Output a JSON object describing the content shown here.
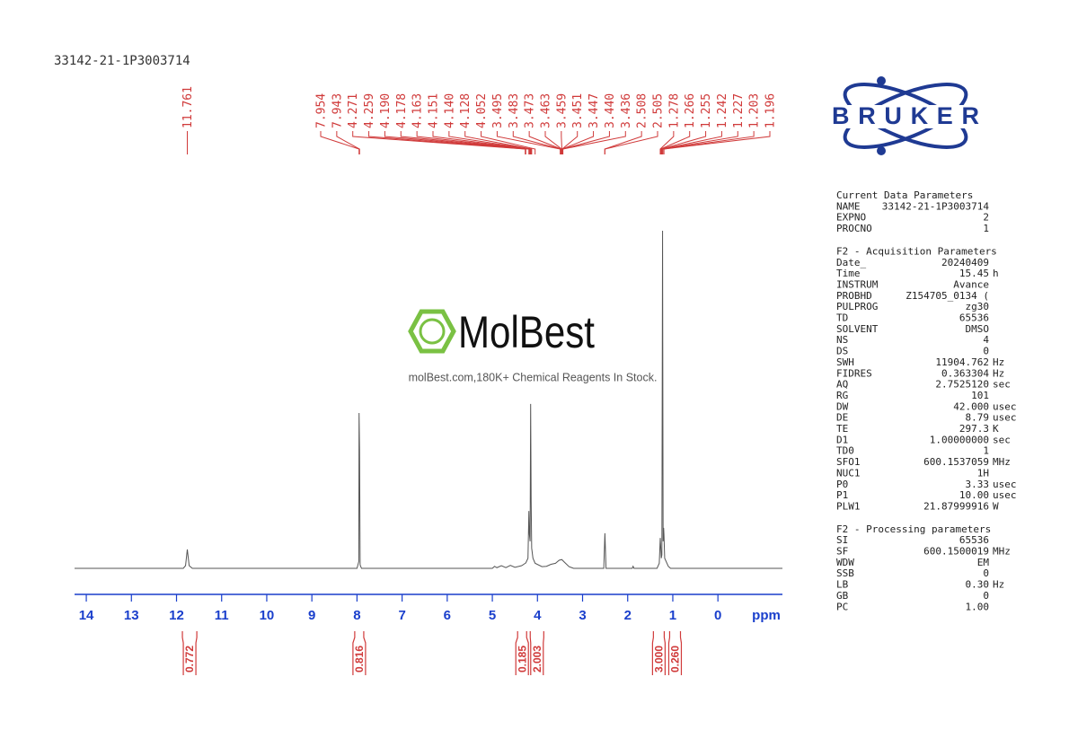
{
  "chart_data": {
    "type": "line",
    "sample_id": "33142-21-1P3003714",
    "x_label": "ppm",
    "xlim": [
      14.26,
      -1.43
    ],
    "xticks": [
      14,
      13,
      12,
      11,
      10,
      9,
      8,
      7,
      6,
      5,
      4,
      3,
      2,
      1,
      0
    ],
    "ylim": [
      0,
      100
    ],
    "axis_color": "#1a3fcc",
    "label_color": "#d03a3a",
    "spectrum": {
      "color": "#555555",
      "x": [
        14.26,
        11.85,
        11.8,
        11.761,
        11.72,
        11.65,
        8.0,
        7.96,
        7.954,
        7.943,
        7.93,
        7.9,
        5.0,
        4.95,
        4.9,
        4.8,
        4.7,
        4.6,
        4.5,
        4.35,
        4.271,
        4.259,
        4.21,
        4.19,
        4.178,
        4.163,
        4.151,
        4.14,
        4.128,
        4.1,
        4.052,
        3.9,
        3.8,
        3.7,
        3.6,
        3.52,
        3.46,
        3.4,
        3.3,
        3.2,
        2.53,
        2.505,
        2.48,
        1.9,
        1.88,
        1.86,
        1.35,
        1.3,
        1.278,
        1.266,
        1.255,
        1.242,
        1.227,
        1.215,
        1.203,
        1.196,
        1.18,
        1.1,
        1.05,
        -1.43
      ],
      "y": [
        0,
        0,
        0.8,
        5.6,
        0.8,
        0,
        0,
        2,
        46,
        35,
        1,
        0,
        0,
        0.6,
        0.2,
        0.8,
        0.2,
        0.9,
        0.3,
        0.8,
        1.5,
        1.6,
        3,
        17,
        10,
        8,
        48.7,
        20,
        6,
        3,
        1.5,
        0.5,
        0.6,
        1.2,
        1.5,
        2.4,
        2.6,
        1.8,
        0.5,
        0,
        0,
        10.4,
        0,
        0,
        0.6,
        0,
        0,
        1.5,
        9,
        6,
        3,
        4,
        100,
        8,
        12,
        10,
        3,
        0.6,
        0,
        0
      ]
    },
    "peak_labels": [
      11.761,
      7.954,
      7.943,
      4.271,
      4.259,
      {
        "value": 4.19,
        "label": "4.190"
      },
      4.178,
      4.163,
      4.151,
      {
        "value": 4.14,
        "label": "4.140"
      },
      4.128,
      4.052,
      3.495,
      3.483,
      3.473,
      3.463,
      3.459,
      3.451,
      3.447,
      {
        "value": 3.44,
        "label": "3.440"
      },
      3.436,
      2.508,
      2.505,
      1.278,
      1.266,
      1.255,
      1.242,
      1.227,
      1.203,
      1.196
    ],
    "integrals": [
      {
        "from": 11.87,
        "to": 11.55,
        "value": 0.772
      },
      {
        "from": 8.05,
        "to": 7.85,
        "value": 0.816
      },
      {
        "from": 4.44,
        "to": 4.24,
        "value": 0.185
      },
      {
        "from": 4.16,
        "to": 3.86,
        "value": 2.003
      },
      {
        "from": 1.43,
        "to": 1.19,
        "value": {
          "value": 3,
          "label": "3.000"
        }
      },
      {
        "from": 1.07,
        "to": 0.83,
        "value": {
          "value": 0.26,
          "label": "0.260"
        }
      }
    ]
  },
  "logo": "BRUKER",
  "watermark": {
    "name": "MolBest",
    "tagline": "molBest.com,180K+ Chemical Reagents In Stock."
  },
  "parameters": [
    {
      "title": "Current Data Parameters",
      "rows": [
        [
          "NAME",
          "33142-21-1P3003714"
        ],
        [
          "EXPNO",
          "2"
        ],
        [
          "PROCNO",
          "1"
        ]
      ]
    },
    {
      "title": "F2 - Acquisition Parameters",
      "rows": [
        [
          "Date_",
          "20240409"
        ],
        [
          "Time",
          "15.45",
          "h"
        ],
        [
          "INSTRUM",
          "Avance"
        ],
        [
          "PROBHD",
          "Z154705_0134 ("
        ],
        [
          "PULPROG",
          "zg30"
        ],
        [
          "TD",
          "65536"
        ],
        [
          "SOLVENT",
          "DMSO"
        ],
        [
          "NS",
          "4"
        ],
        [
          "DS",
          "0"
        ],
        [
          "SWH",
          "11904.762",
          "Hz"
        ],
        [
          "FIDRES",
          "0.363304",
          "Hz"
        ],
        [
          "AQ",
          "2.7525120",
          "sec"
        ],
        [
          "RG",
          "101"
        ],
        [
          "DW",
          "42.000",
          "usec"
        ],
        [
          "DE",
          "8.79",
          "usec"
        ],
        [
          "TE",
          "297.3",
          "K"
        ],
        [
          "D1",
          "1.00000000",
          "sec"
        ],
        [
          "TD0",
          "1"
        ],
        [
          "SFO1",
          "600.1537059",
          "MHz"
        ],
        [
          "NUC1",
          "1H"
        ],
        [
          "P0",
          "3.33",
          "usec"
        ],
        [
          "P1",
          "10.00",
          "usec"
        ],
        [
          "PLW1",
          "21.87999916",
          "W"
        ]
      ]
    },
    {
      "title": "F2 - Processing parameters",
      "rows": [
        [
          "SI",
          "65536"
        ],
        [
          "SF",
          "600.1500019",
          "MHz"
        ],
        [
          "WDW",
          "EM"
        ],
        [
          "SSB",
          "0"
        ],
        [
          "LB",
          "0.30",
          "Hz"
        ],
        [
          "GB",
          "0"
        ],
        [
          "PC",
          "1.00"
        ]
      ]
    }
  ]
}
